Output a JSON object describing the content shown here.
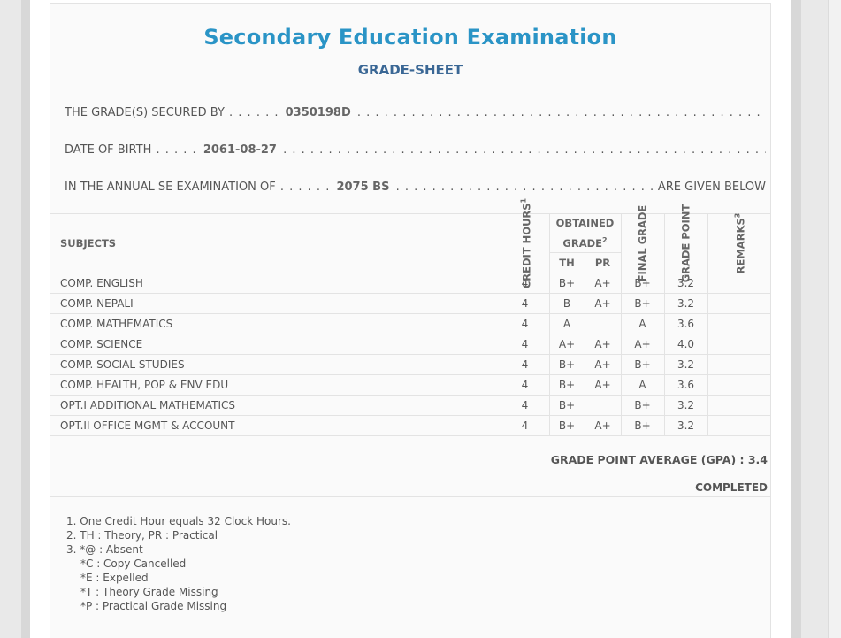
{
  "header": {
    "title": "Secondary Education Examination",
    "subtitle": "GRADE-SHEET"
  },
  "info": {
    "secured_label": "THE GRADE(S) SECURED BY",
    "symbol_no": "0350198D",
    "dob_label": "DATE OF BIRTH",
    "dob": "2061-08-27",
    "exam_label": "IN THE ANNUAL SE EXAMINATION OF",
    "exam_year": "2075 BS",
    "exam_tail": "ARE GIVEN BELOW"
  },
  "table": {
    "headers": {
      "subjects": "SUBJECTS",
      "credit_hours": "CREDIT HOURS",
      "credit_sup": "1",
      "obtained_grade": "OBTAINED GRADE",
      "obtained_sup": "2",
      "th": "TH",
      "pr": "PR",
      "final_grade": "FINAL GRADE",
      "grade_point": "GRADE POINT",
      "remarks": "REMARKS",
      "remarks_sup": "3"
    },
    "rows": [
      {
        "subject": "COMP. ENGLISH",
        "credit": "4",
        "th": "B+",
        "pr": "A+",
        "final": "B+",
        "gp": "3.2",
        "remarks": ""
      },
      {
        "subject": "COMP. NEPALI",
        "credit": "4",
        "th": "B",
        "pr": "A+",
        "final": "B+",
        "gp": "3.2",
        "remarks": ""
      },
      {
        "subject": "COMP. MATHEMATICS",
        "credit": "4",
        "th": "A",
        "pr": "",
        "final": "A",
        "gp": "3.6",
        "remarks": ""
      },
      {
        "subject": "COMP. SCIENCE",
        "credit": "4",
        "th": "A+",
        "pr": "A+",
        "final": "A+",
        "gp": "4.0",
        "remarks": ""
      },
      {
        "subject": "COMP. SOCIAL STUDIES",
        "credit": "4",
        "th": "B+",
        "pr": "A+",
        "final": "B+",
        "gp": "3.2",
        "remarks": ""
      },
      {
        "subject": "COMP. HEALTH, POP & ENV EDU",
        "credit": "4",
        "th": "B+",
        "pr": "A+",
        "final": "A",
        "gp": "3.6",
        "remarks": ""
      },
      {
        "subject": "OPT.I ADDITIONAL MATHEMATICS",
        "credit": "4",
        "th": "B+",
        "pr": "",
        "final": "B+",
        "gp": "3.2",
        "remarks": ""
      },
      {
        "subject": "OPT.II OFFICE MGMT & ACCOUNT",
        "credit": "4",
        "th": "B+",
        "pr": "A+",
        "final": "B+",
        "gp": "3.2",
        "remarks": ""
      }
    ]
  },
  "summary": {
    "gpa": "GRADE POINT AVERAGE (GPA) : 3.4",
    "status": "COMPLETED"
  },
  "notes": [
    "1. One Credit Hour equals 32 Clock Hours.",
    "2. TH : Theory, PR : Practical",
    "3. *@ : Absent",
    "*C : Copy Cancelled",
    "*E : Expelled",
    "*T : Theory Grade Missing",
    "*P : Practical Grade Missing"
  ]
}
